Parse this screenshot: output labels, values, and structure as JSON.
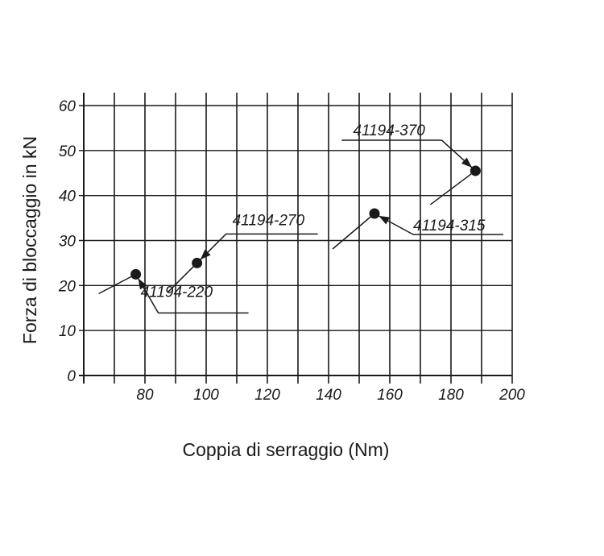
{
  "chart_data": {
    "type": "scatter",
    "xlabel": "Coppia di serraggio (Nm)",
    "ylabel": "Forza di bloccaggio in kN",
    "xlim": [
      60,
      200
    ],
    "ylim": [
      0,
      60
    ],
    "x_ticks": [
      80,
      100,
      120,
      140,
      160,
      180,
      200
    ],
    "y_ticks": [
      0,
      10,
      20,
      30,
      40,
      50,
      60
    ],
    "grid": true,
    "series": [
      {
        "values": [
          {
            "x": 77,
            "y": 22.5,
            "label": "41194-220"
          },
          {
            "x": 97,
            "y": 25,
            "label": "41194-270"
          },
          {
            "x": 155,
            "y": 36,
            "label": "41194-315"
          },
          {
            "x": 188,
            "y": 45.5,
            "label": "41194-370"
          }
        ]
      }
    ]
  }
}
